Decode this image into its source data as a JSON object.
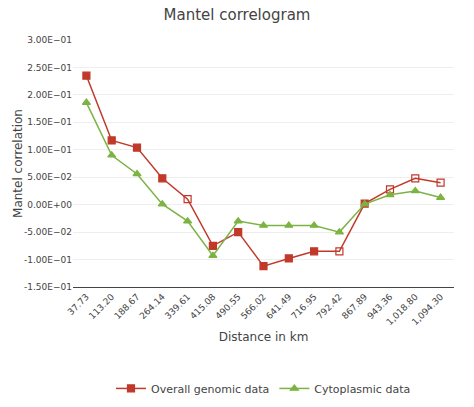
{
  "chart_data": {
    "type": "line",
    "title": "Mantel correlogram",
    "xlabel": "Distance in km",
    "ylabel": "Mantel correlation",
    "x": [
      37.73,
      113.2,
      188.67,
      264.14,
      339.61,
      415.08,
      490.55,
      566.02,
      641.49,
      716.95,
      792.42,
      867.89,
      943.36,
      1018.8,
      1094.3
    ],
    "series": [
      {
        "name": "Overall genomic data",
        "color": "#c0392b",
        "marker": "square",
        "values": [
          0.235,
          0.117,
          0.104,
          0.048,
          0.01,
          -0.075,
          -0.05,
          -0.112,
          -0.098,
          -0.085,
          -0.085,
          0.002,
          0.028,
          0.048,
          0.04
        ],
        "filled": [
          true,
          true,
          true,
          true,
          false,
          true,
          true,
          true,
          true,
          true,
          false,
          true,
          false,
          false,
          false
        ]
      },
      {
        "name": "Cytoplasmic data",
        "color": "#7cb342",
        "marker": "triangle-up",
        "values": [
          0.186,
          0.09,
          0.056,
          0.001,
          -0.03,
          -0.093,
          -0.03,
          -0.038,
          -0.038,
          -0.038,
          -0.05,
          0.001,
          0.018,
          0.025,
          0.013
        ],
        "filled": [
          true,
          true,
          true,
          true,
          true,
          true,
          true,
          true,
          true,
          true,
          true,
          true,
          true,
          true,
          true
        ]
      }
    ],
    "xlim": [
      -2.27,
      1134.3
    ],
    "xticks": [
      37.73,
      {
        "value": 113.2,
        "label": "113.20"
      },
      188.67,
      264.14,
      339.61,
      415.08,
      490.55,
      566.02,
      641.49,
      716.95,
      792.42,
      867.89,
      943.36,
      {
        "value": 1018.8,
        "label": "1,018.80"
      },
      {
        "value": 1094.3,
        "label": "1,094.30"
      }
    ],
    "ylim": [
      -0.15,
      0.3
    ],
    "yticks": [
      {
        "value": -0.15,
        "label": "-1.50E−01"
      },
      {
        "value": -0.1,
        "label": "-1.00E−01"
      },
      {
        "value": -0.05,
        "label": "-5.00E−02"
      },
      {
        "value": 0.0,
        "label": "0.00E+00"
      },
      {
        "value": 0.05,
        "label": "5.00E−02"
      },
      {
        "value": 0.1,
        "label": "1.00E−01"
      },
      {
        "value": 0.15,
        "label": "1.50E−01"
      },
      {
        "value": 0.2,
        "label": "2.00E−01"
      },
      {
        "value": 0.25,
        "label": "2.50E−01"
      },
      {
        "value": 0.3,
        "label": "3.00E−01"
      }
    ],
    "grid": "y",
    "legend": "bottom"
  }
}
